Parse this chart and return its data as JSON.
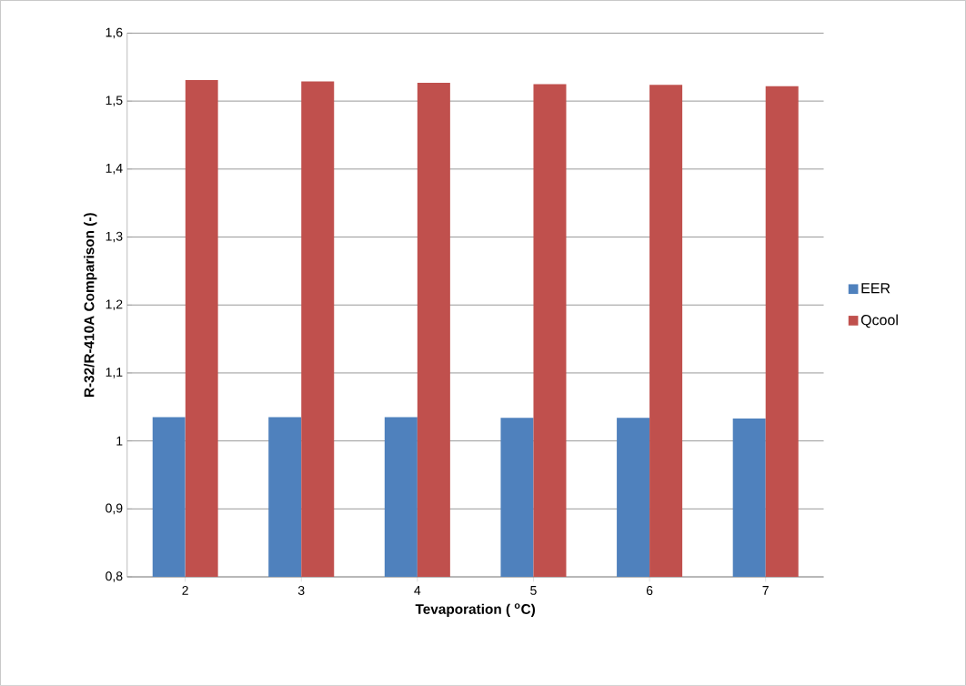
{
  "chart_data": {
    "type": "bar",
    "xlabel": "Tevaporation ( $^{o}$C)",
    "ylabel": "R-32/R-410A Comparison (-)",
    "categories": [
      "2",
      "3",
      "4",
      "5",
      "6",
      "7"
    ],
    "series": [
      {
        "name": "EER",
        "color": "#4f81bd",
        "values": [
          1.035,
          1.035,
          1.035,
          1.034,
          1.034,
          1.033
        ]
      },
      {
        "name": "Qcool",
        "color": "#c0504d",
        "values": [
          1.531,
          1.529,
          1.527,
          1.525,
          1.524,
          1.522
        ]
      }
    ],
    "ylim": [
      0.8,
      1.6
    ],
    "yticks": [
      {
        "value": 0.8,
        "label": "0,8"
      },
      {
        "value": 0.9,
        "label": "0,9"
      },
      {
        "value": 1,
        "label": "1"
      },
      {
        "value": 1.1,
        "label": "1,1"
      },
      {
        "value": 1.2,
        "label": "1,2"
      },
      {
        "value": 1.3,
        "label": "1,3"
      },
      {
        "value": 1.4,
        "label": "1,4"
      },
      {
        "value": 1.5,
        "label": "1,5"
      },
      {
        "value": 1.6,
        "label": "1,6"
      }
    ],
    "grid": "y",
    "legend": "right"
  }
}
